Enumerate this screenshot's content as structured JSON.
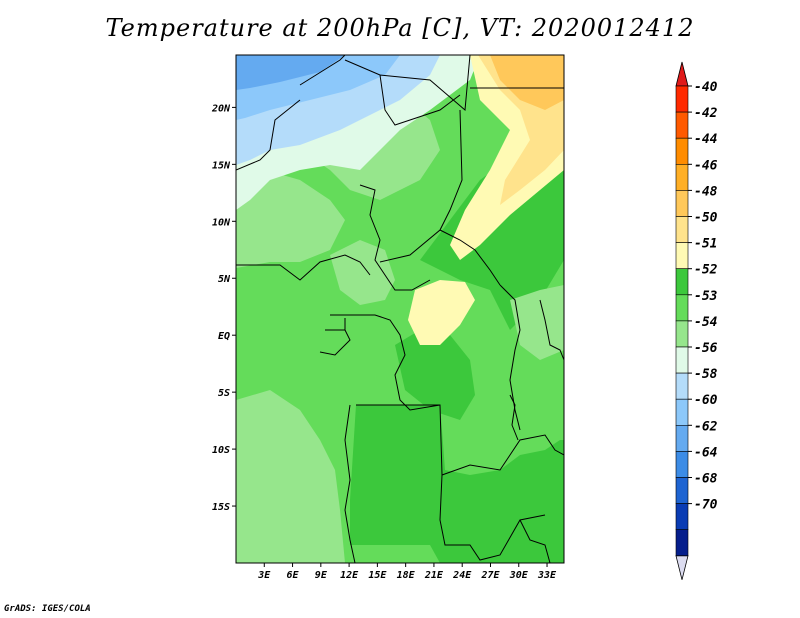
{
  "title": "Temperature at 200hPa [C], VT: 2020012412",
  "credit": "GrADS: IGES/COLA",
  "map": {
    "lat_labels": [
      "20N",
      "15N",
      "10N",
      "5N",
      "EQ",
      "5S",
      "10S",
      "15S"
    ],
    "lat_values": [
      20,
      15,
      10,
      5,
      0,
      -5,
      -10,
      -15
    ],
    "lon_labels": [
      "3E",
      "6E",
      "9E",
      "12E",
      "15E",
      "18E",
      "21E",
      "24E",
      "27E",
      "30E",
      "33E"
    ],
    "lon_values": [
      3,
      6,
      9,
      12,
      15,
      18,
      21,
      24,
      27,
      30,
      33
    ],
    "lat_range": [
      -20,
      24.6
    ],
    "lon_range": [
      0,
      34.8
    ]
  },
  "colorbar": {
    "labels": [
      "-40",
      "-42",
      "-44",
      "-46",
      "-48",
      "-50",
      "-51",
      "-52",
      "-53",
      "-54",
      "-56",
      "-58",
      "-60",
      "-62",
      "-64",
      "-68",
      "-70"
    ],
    "colors": [
      "#ff2a00",
      "#ff5a00",
      "#ff8c00",
      "#ffaf26",
      "#ffc85a",
      "#ffe38c",
      "#fffab4",
      "#3cc83c",
      "#64dc5a",
      "#96e68c",
      "#e0fae8",
      "#b4dcfa",
      "#8cc8fa",
      "#64aaf0",
      "#3c8ce6",
      "#1e64d2",
      "#0a3cb4",
      "#051e8c"
    ],
    "top_triangle_color": "#e01a1a",
    "bottom_triangle_color": "#dcdcf0"
  }
}
